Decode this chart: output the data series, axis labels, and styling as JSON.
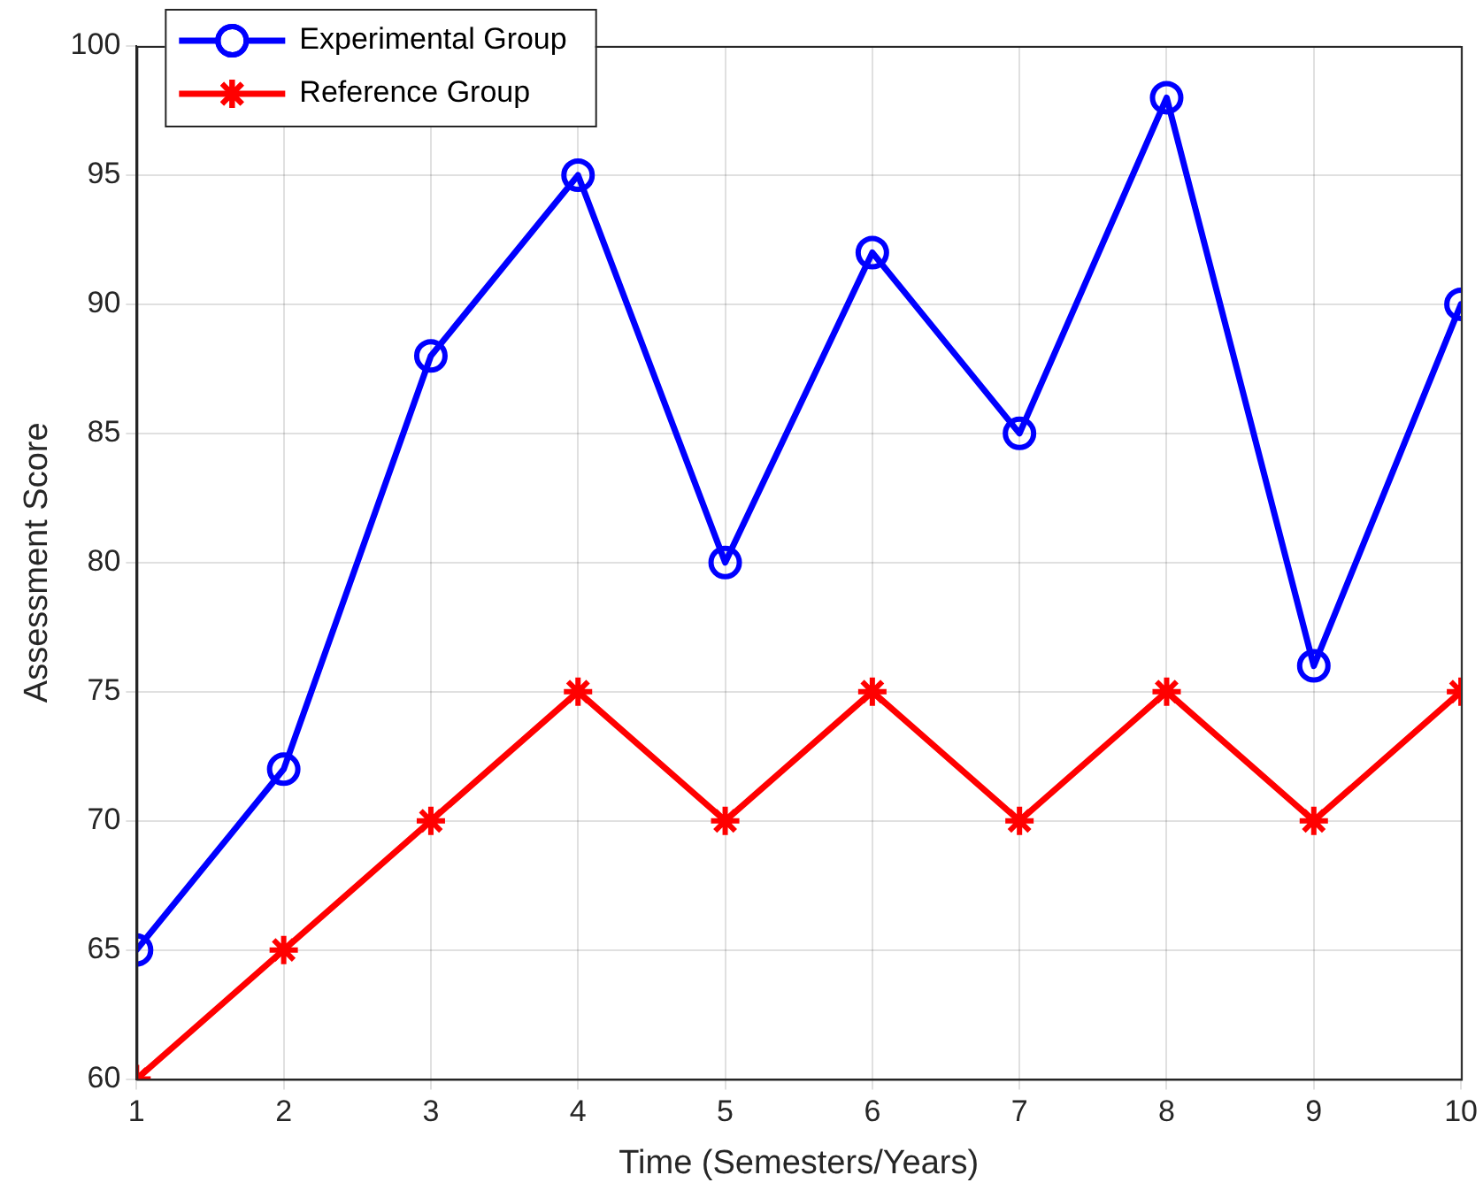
{
  "chart_data": {
    "type": "line",
    "xlabel": "Time (Semesters/Years)",
    "ylabel": "Assessment Score",
    "x": [
      1,
      2,
      3,
      4,
      5,
      6,
      7,
      8,
      9,
      10
    ],
    "series": [
      {
        "name": "Experimental Group",
        "color": "#0000ff",
        "marker": "circle",
        "values": [
          65,
          72,
          88,
          95,
          80,
          92,
          85,
          98,
          76,
          90
        ]
      },
      {
        "name": "Reference Group",
        "color": "#ff0000",
        "marker": "cross",
        "values": [
          60,
          65,
          70,
          75,
          70,
          75,
          70,
          75,
          70,
          75
        ]
      }
    ],
    "xlim": [
      1,
      10
    ],
    "xticks": [
      1,
      2,
      3,
      4,
      5,
      6,
      7,
      8,
      9,
      10
    ],
    "ylim": [
      60,
      100
    ],
    "yticks": [
      60,
      65,
      70,
      75,
      80,
      85,
      90,
      95,
      100
    ],
    "grid": true,
    "legend": "top left",
    "line_style": "solid"
  }
}
